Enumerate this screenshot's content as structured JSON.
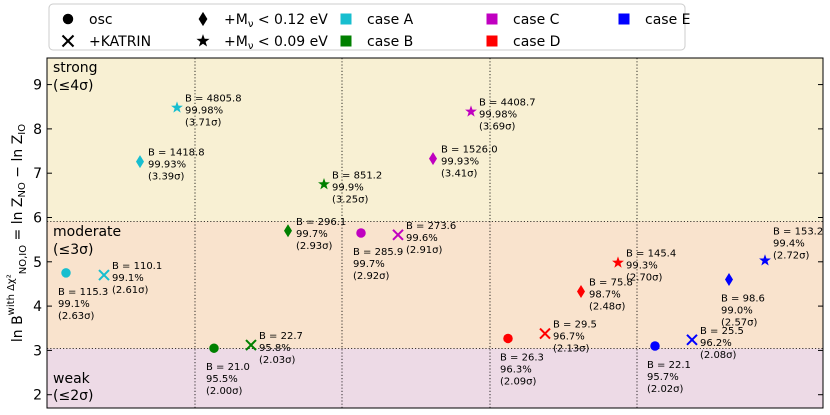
{
  "chart_data": {
    "type": "scatter",
    "ylabel": "ln B_{NO,IO}^{with Δχ²} = ln Z_NO − ln Z_IO",
    "ylabel_parts": {
      "b": "ln B",
      "sub": "NO,IO",
      "sup": "with Δχ²",
      "rest": " = ln Z",
      "sub1": "NO",
      "minus": " − ",
      "rest2": "ln Z",
      "sub2": "IO"
    },
    "ylim": [
      1.7,
      9.6
    ],
    "yticks": [
      2,
      3,
      4,
      5,
      6,
      7,
      8,
      9
    ],
    "grid": "vertical dotted separators",
    "regions": [
      {
        "name": "strong",
        "label1": "strong",
        "label2": "(≤4σ)",
        "from": 5.91,
        "to": 9.6,
        "color": "#f8f0d3"
      },
      {
        "name": "moderate",
        "label1": "moderate",
        "label2": "(≤3σ)",
        "from": 3.04,
        "to": 5.91,
        "color": "#f9e3cd"
      },
      {
        "name": "weak",
        "label1": "weak",
        "label2": "(≤2σ)",
        "from": 1.7,
        "to": 3.04,
        "color": "#eddaE6"
      }
    ],
    "thresholds": [
      3.04,
      5.91
    ],
    "legend": {
      "placement": "top, above plot",
      "items": [
        {
          "marker": "circle",
          "color": "#000000",
          "label": "osc"
        },
        {
          "marker": "x",
          "color": "#000000",
          "label": "+KATRIN"
        },
        {
          "marker": "diamond",
          "color": "#000000",
          "label_prefix": "+M",
          "label_sub": "ν",
          "label_suffix": " < 0.12 eV"
        },
        {
          "marker": "star",
          "color": "#000000",
          "label_prefix": "+M",
          "label_sub": "ν",
          "label_suffix": " < 0.09 eV"
        },
        {
          "marker": "square",
          "color": "#17becf",
          "label": "case A"
        },
        {
          "marker": "square",
          "color": "#008000",
          "label": "case B"
        },
        {
          "marker": "square",
          "color": "#c000c0",
          "label": "case C"
        },
        {
          "marker": "square",
          "color": "#ff0000",
          "label": "case D"
        },
        {
          "marker": "square",
          "color": "#0000ff",
          "label": "case E"
        }
      ]
    },
    "points": [
      {
        "case": "A",
        "marker": "circle",
        "color": "#17becf",
        "y": 4.75,
        "B": "B = 115.3",
        "pct": "99.1%",
        "sig": "(2.63σ)",
        "label_side": "below"
      },
      {
        "case": "A",
        "marker": "x",
        "color": "#17becf",
        "y": 4.7,
        "B": "B = 110.1",
        "pct": "99.1%",
        "sig": "(2.61σ)",
        "label_side": "right"
      },
      {
        "case": "A",
        "marker": "diamond",
        "color": "#17becf",
        "y": 7.26,
        "B": "B = 1418.8",
        "pct": "99.93%",
        "sig": "(3.39σ)",
        "label_side": "right"
      },
      {
        "case": "A",
        "marker": "star",
        "color": "#17becf",
        "y": 8.48,
        "B": "B = 4805.8",
        "pct": "99.98%",
        "sig": "(3.71σ)",
        "label_side": "right"
      },
      {
        "case": "B",
        "marker": "circle",
        "color": "#008000",
        "y": 3.05,
        "B": "B = 21.0",
        "pct": "95.5%",
        "sig": "(2.00σ)",
        "label_side": "below"
      },
      {
        "case": "B",
        "marker": "x",
        "color": "#008000",
        "y": 3.12,
        "B": "B = 22.7",
        "pct": "95.8%",
        "sig": "(2.03σ)",
        "label_side": "right"
      },
      {
        "case": "B",
        "marker": "diamond",
        "color": "#008000",
        "y": 5.7,
        "B": "B = 296.1",
        "pct": "99.7%",
        "sig": "(2.93σ)",
        "label_side": "right"
      },
      {
        "case": "B",
        "marker": "star",
        "color": "#008000",
        "y": 6.75,
        "B": "B = 851.2",
        "pct": "99.9%",
        "sig": "(3.25σ)",
        "label_side": "right"
      },
      {
        "case": "C",
        "marker": "circle",
        "color": "#c000c0",
        "y": 5.65,
        "B": "B = 285.9",
        "pct": "99.7%",
        "sig": "(2.92σ)",
        "label_side": "below"
      },
      {
        "case": "C",
        "marker": "x",
        "color": "#c000c0",
        "y": 5.61,
        "B": "B = 273.6",
        "pct": "99.6%",
        "sig": "(2.91σ)",
        "label_side": "right"
      },
      {
        "case": "C",
        "marker": "diamond",
        "color": "#c000c0",
        "y": 7.33,
        "B": "B = 1526.0",
        "pct": "99.93%",
        "sig": "(3.41σ)",
        "label_side": "right"
      },
      {
        "case": "C",
        "marker": "star",
        "color": "#c000c0",
        "y": 8.39,
        "B": "B = 4408.7",
        "pct": "99.98%",
        "sig": "(3.69σ)",
        "label_side": "right"
      },
      {
        "case": "D",
        "marker": "circle",
        "color": "#ff0000",
        "y": 3.27,
        "B": "B = 26.3",
        "pct": "96.3%",
        "sig": "(2.09σ)",
        "label_side": "below"
      },
      {
        "case": "D",
        "marker": "x",
        "color": "#ff0000",
        "y": 3.38,
        "B": "B = 29.5",
        "pct": "96.7%",
        "sig": "(2.13σ)",
        "label_side": "right"
      },
      {
        "case": "D",
        "marker": "diamond",
        "color": "#ff0000",
        "y": 4.33,
        "B": "B = 75.8",
        "pct": "98.7%",
        "sig": "(2.48σ)",
        "label_side": "right"
      },
      {
        "case": "D",
        "marker": "star",
        "color": "#ff0000",
        "y": 4.98,
        "B": "B = 145.4",
        "pct": "99.3%",
        "sig": "(2.70σ)",
        "label_side": "right"
      },
      {
        "case": "E",
        "marker": "circle",
        "color": "#0000ff",
        "y": 3.1,
        "B": "B = 22.1",
        "pct": "95.7%",
        "sig": "(2.02σ)",
        "label_side": "below"
      },
      {
        "case": "E",
        "marker": "x",
        "color": "#0000ff",
        "y": 3.24,
        "B": "B = 25.5",
        "pct": "96.2%",
        "sig": "(2.08σ)",
        "label_side": "right"
      },
      {
        "case": "E",
        "marker": "diamond",
        "color": "#0000ff",
        "y": 4.6,
        "B": "B = 98.6",
        "pct": "99.0%",
        "sig": "(2.57σ)",
        "label_side": "below"
      },
      {
        "case": "E",
        "marker": "star",
        "color": "#0000ff",
        "y": 5.03,
        "B": "B = 153.2",
        "pct": "99.4%",
        "sig": "(2.72σ)",
        "label_side": "above"
      }
    ]
  }
}
